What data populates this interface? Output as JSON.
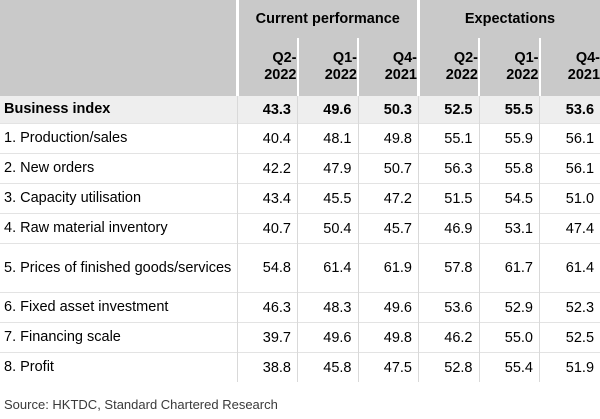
{
  "chart_data": {
    "type": "table",
    "column_groups": [
      {
        "label": "Current performance",
        "quarters": [
          "Q2-2022",
          "Q1-2022",
          "Q4-2021"
        ]
      },
      {
        "label": "Expectations",
        "quarters": [
          "Q2-2022",
          "Q1-2022",
          "Q4-2021"
        ]
      }
    ],
    "headers": {
      "current_q2": "Q2-\n2022",
      "current_q1": "Q1-\n2022",
      "current_q4": "Q4-\n2021",
      "expect_q2": "Q2-\n2022",
      "expect_q1": "Q1-\n2022",
      "expect_q4": "Q4-\n2021"
    },
    "rows": [
      {
        "label": "Business index",
        "values": [
          "43.3",
          "49.6",
          "50.3",
          "52.5",
          "55.5",
          "53.6"
        ],
        "bold": true
      },
      {
        "label": "1. Production/sales",
        "values": [
          "40.4",
          "48.1",
          "49.8",
          "55.1",
          "55.9",
          "56.1"
        ]
      },
      {
        "label": "2. New orders",
        "values": [
          "42.2",
          "47.9",
          "50.7",
          "56.3",
          "55.8",
          "56.1"
        ]
      },
      {
        "label": "3. Capacity utilisation",
        "values": [
          "43.4",
          "45.5",
          "47.2",
          "51.5",
          "54.5",
          "51.0"
        ]
      },
      {
        "label": "4. Raw material inventory",
        "values": [
          "40.7",
          "50.4",
          "45.7",
          "46.9",
          "53.1",
          "47.4"
        ]
      },
      {
        "label": "5. Prices of finished goods/services",
        "values": [
          "54.8",
          "61.4",
          "61.9",
          "57.8",
          "61.7",
          "61.4"
        ]
      },
      {
        "label": "6. Fixed asset investment",
        "values": [
          "46.3",
          "48.3",
          "49.6",
          "53.6",
          "52.9",
          "52.3"
        ]
      },
      {
        "label": "7. Financing scale",
        "values": [
          "39.7",
          "49.6",
          "49.8",
          "46.2",
          "55.0",
          "52.5"
        ]
      },
      {
        "label": "8. Profit",
        "values": [
          "38.8",
          "45.8",
          "47.5",
          "52.8",
          "55.4",
          "51.9"
        ]
      }
    ],
    "source": "Source: HKTDC, Standard Chartered Research"
  },
  "colors": {
    "header_bg": "#c9c9c9",
    "highlight_row_bg": "#eeeeee",
    "separator": "#ffffff"
  }
}
